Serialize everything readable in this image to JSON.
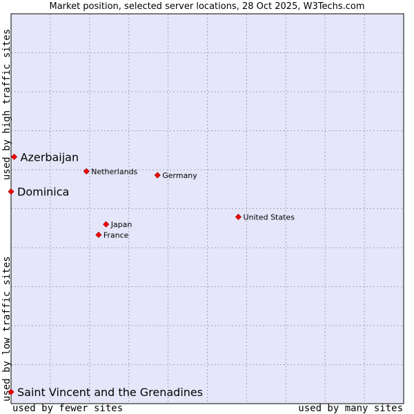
{
  "chart_data": {
    "type": "scatter",
    "title": "Market position, selected server locations, 28 Oct 2025, W3Techs.com",
    "xlabel_left": "used by fewer sites",
    "xlabel_right": "used by many sites",
    "ylabel_bottom": "used by low traffic sites",
    "ylabel_top": "used by high traffic sites",
    "xlim": [
      0,
      100
    ],
    "ylim": [
      0,
      100
    ],
    "grid": true,
    "colors": {
      "plot_bg": "#e6e6fa",
      "grid": "#a0a0b8",
      "point": "#ff0000",
      "point_stroke": "#990000"
    },
    "points": [
      {
        "label": "Azerbaijan",
        "x": 0.8,
        "y": 63.3,
        "emphasis": true
      },
      {
        "label": "Dominica",
        "x": 0.0,
        "y": 54.4,
        "emphasis": true
      },
      {
        "label": "Saint Vincent and the Grenadines",
        "x": 0.0,
        "y": 3.0,
        "emphasis": true
      },
      {
        "label": "Netherlands",
        "x": 19.2,
        "y": 59.6,
        "emphasis": false
      },
      {
        "label": "Germany",
        "x": 37.3,
        "y": 58.6,
        "emphasis": false
      },
      {
        "label": "United States",
        "x": 57.9,
        "y": 47.9,
        "emphasis": false
      },
      {
        "label": "Japan",
        "x": 24.2,
        "y": 46.0,
        "emphasis": false
      },
      {
        "label": "France",
        "x": 22.3,
        "y": 43.3,
        "emphasis": false
      }
    ]
  }
}
